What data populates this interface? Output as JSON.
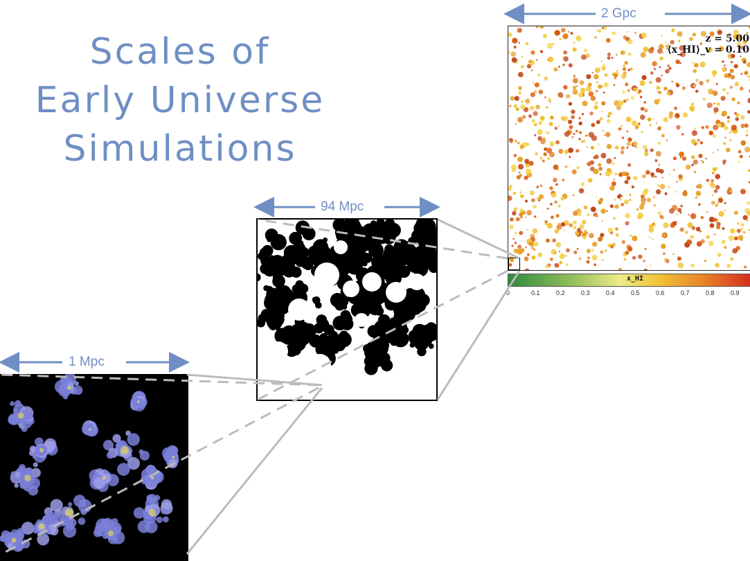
{
  "title": {
    "line1": "Scales of",
    "line2": "Early Universe",
    "line3": "Simulations"
  },
  "scales": [
    {
      "label": "2 Gpc"
    },
    {
      "label": "94 Mpc"
    },
    {
      "label": "1 Mpc"
    }
  ],
  "panel_2gpc": {
    "redshift": "z = 5.00",
    "neutral_fraction": "⟨x_HI⟩_v = 0.10"
  },
  "colorbar": {
    "label": "x_HI",
    "ticks": [
      "0",
      "0.1",
      "0.2",
      "0.3",
      "0.4",
      "0.5",
      "0.6",
      "0.7",
      "0.8",
      "0.9"
    ]
  },
  "colors": {
    "accent": "#6f8fc4",
    "connector": "#bbbbbb",
    "arrow": "#6f8fc4"
  }
}
